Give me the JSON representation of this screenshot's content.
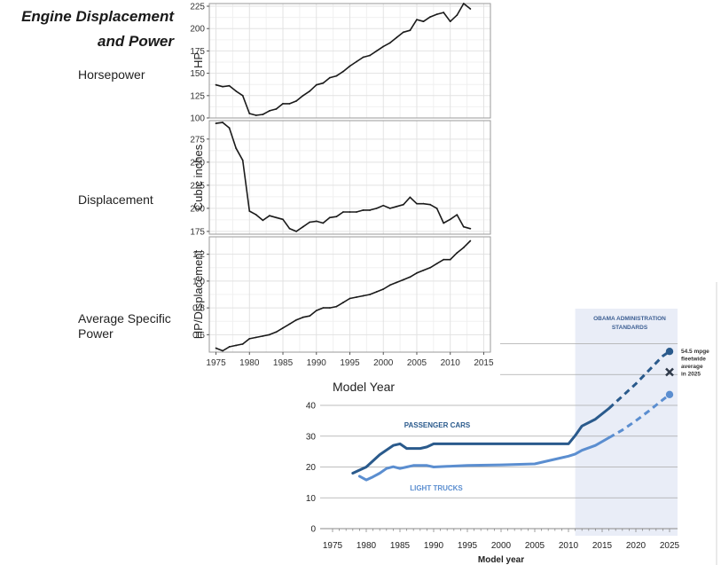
{
  "figure_title": [
    "Engine Displacement",
    "and Power"
  ],
  "panel_labels": [
    "Horsepower",
    "Displacement",
    "Average Specific",
    "Power"
  ],
  "shared_xlabel": "Model Year",
  "chart_data": [
    {
      "type": "line",
      "ylabel": "HP",
      "ylim": [
        100,
        228
      ],
      "yticks": [
        100,
        125,
        150,
        175,
        200,
        225
      ],
      "xlim": [
        1974,
        2016
      ],
      "grid": true,
      "x": [
        1975,
        1976,
        1977,
        1978,
        1979,
        1980,
        1981,
        1982,
        1983,
        1984,
        1985,
        1986,
        1987,
        1988,
        1989,
        1990,
        1991,
        1992,
        1993,
        1994,
        1995,
        1996,
        1997,
        1998,
        1999,
        2000,
        2001,
        2002,
        2003,
        2004,
        2005,
        2006,
        2007,
        2008,
        2009,
        2010,
        2011,
        2012,
        2013
      ],
      "values": [
        137,
        135,
        136,
        130,
        125,
        105,
        103,
        104,
        108,
        110,
        116,
        116,
        119,
        125,
        130,
        137,
        139,
        145,
        147,
        152,
        158,
        163,
        168,
        170,
        175,
        180,
        184,
        190,
        196,
        198,
        210,
        208,
        213,
        216,
        218,
        208,
        215,
        228,
        222
      ]
    },
    {
      "type": "line",
      "ylabel": "Cubic inches",
      "ylim": [
        172,
        295
      ],
      "yticks": [
        175,
        200,
        225,
        250,
        275
      ],
      "xlim": [
        1974,
        2016
      ],
      "grid": true,
      "x": [
        1975,
        1976,
        1977,
        1978,
        1979,
        1980,
        1981,
        1982,
        1983,
        1984,
        1985,
        1986,
        1987,
        1988,
        1989,
        1990,
        1991,
        1992,
        1993,
        1994,
        1995,
        1996,
        1997,
        1998,
        1999,
        2000,
        2001,
        2002,
        2003,
        2004,
        2005,
        2006,
        2007,
        2008,
        2009,
        2010,
        2011,
        2012,
        2013
      ],
      "values": [
        292,
        293,
        287,
        265,
        252,
        197,
        193,
        187,
        192,
        190,
        188,
        178,
        175,
        180,
        185,
        186,
        184,
        190,
        191,
        196,
        196,
        196,
        198,
        198,
        200,
        203,
        200,
        202,
        204,
        212,
        205,
        205,
        204,
        200,
        184,
        188,
        193,
        180,
        178
      ]
    },
    {
      "type": "line",
      "ylabel": "HP/Displacement",
      "ylim": [
        0.47,
        1.33
      ],
      "yticks": [
        0.6,
        0.8,
        1.0,
        1.2
      ],
      "ytick_labels": [
        "0.6",
        "0.8",
        "1.0",
        "1.2"
      ],
      "xlim": [
        1974,
        2016
      ],
      "xticks": [
        1975,
        1980,
        1985,
        1990,
        1995,
        2000,
        2005,
        2010,
        2015
      ],
      "xlabel": "Model Year",
      "grid": true,
      "x": [
        1975,
        1976,
        1977,
        1978,
        1979,
        1980,
        1981,
        1982,
        1983,
        1984,
        1985,
        1986,
        1987,
        1988,
        1989,
        1990,
        1991,
        1992,
        1993,
        1994,
        1995,
        1996,
        1997,
        1998,
        1999,
        2000,
        2001,
        2002,
        2003,
        2004,
        2005,
        2006,
        2007,
        2008,
        2009,
        2010,
        2011,
        2012,
        2013
      ],
      "values": [
        0.5,
        0.48,
        0.51,
        0.52,
        0.53,
        0.57,
        0.58,
        0.59,
        0.6,
        0.62,
        0.65,
        0.68,
        0.71,
        0.73,
        0.74,
        0.78,
        0.8,
        0.8,
        0.81,
        0.84,
        0.87,
        0.88,
        0.89,
        0.9,
        0.92,
        0.94,
        0.97,
        0.99,
        1.01,
        1.03,
        1.06,
        1.08,
        1.1,
        1.13,
        1.16,
        1.16,
        1.21,
        1.25,
        1.3
      ]
    },
    {
      "type": "line",
      "xlabel": "Model year",
      "xlim": [
        1975,
        2025
      ],
      "xticks": [
        1975,
        1980,
        1985,
        1990,
        1995,
        2000,
        2005,
        2010,
        2015,
        2020,
        2025
      ],
      "ylim": [
        0,
        40
      ],
      "yticks": [
        0,
        10,
        20,
        30,
        40
      ],
      "grid": true,
      "shaded_region": {
        "from": 2011,
        "to": 2025,
        "label": [
          "OBAMA ADMINISTRATION",
          "STANDARDS"
        ]
      },
      "series": [
        {
          "name": "PASSENGER CARS",
          "color": "#2a5a8c",
          "x": [
            1978,
            1980,
            1982,
            1984,
            1985,
            1986,
            1988,
            1989,
            1990,
            1995,
            2000,
            2005,
            2010,
            2011,
            2012,
            2014,
            2016
          ],
          "values": [
            18,
            20,
            24,
            27,
            27.5,
            26,
            26,
            26.5,
            27.5,
            27.5,
            27.5,
            27.5,
            27.5,
            30.2,
            33.3,
            35.5,
            39
          ],
          "projection": {
            "x": [
              2016,
              2018,
              2020,
              2022,
              2024,
              2025
            ],
            "values": [
              39,
              43,
              47,
              51.5,
              56,
              57.5
            ]
          },
          "end_value": 57.5
        },
        {
          "name": "LIGHT TRUCKS",
          "color": "#5b8ed0",
          "x": [
            1979,
            1980,
            1981,
            1982,
            1983,
            1984,
            1985,
            1986,
            1987,
            1988,
            1989,
            1990,
            1992,
            1995,
            2000,
            2005,
            2007,
            2010,
            2011,
            2012,
            2014,
            2016
          ],
          "values": [
            17,
            15.8,
            16.8,
            18,
            19.5,
            20.1,
            19.5,
            20,
            20.5,
            20.5,
            20.5,
            20,
            20.2,
            20.5,
            20.7,
            21,
            22,
            23.5,
            24.2,
            25.4,
            27,
            29.5
          ],
          "projection": {
            "x": [
              2016,
              2018,
              2020,
              2022,
              2024,
              2025
            ],
            "values": [
              29.5,
              32,
              35,
              38.3,
              41.8,
              43.5
            ]
          },
          "end_value": 43.5
        }
      ],
      "annotation": {
        "marker": "x",
        "x": 2025,
        "y": 50.8,
        "text": [
          "54.5 mpge",
          "fleetwide",
          "average",
          "in 2025"
        ]
      }
    }
  ]
}
